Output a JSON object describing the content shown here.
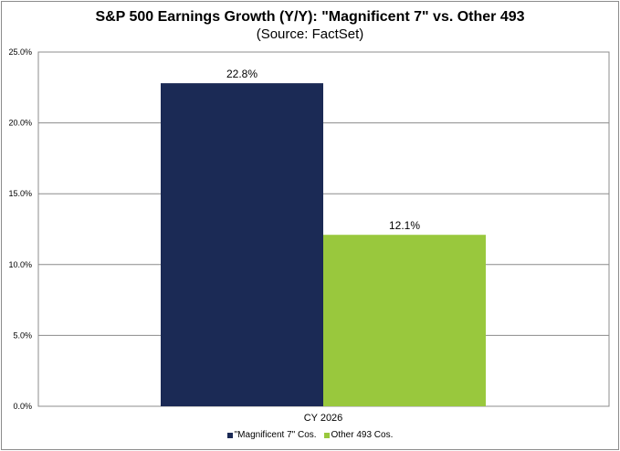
{
  "chart_data": {
    "type": "bar",
    "title": "S&P 500 Earnings Growth (Y/Y): \"Magnificent 7\" vs. Other 493",
    "subtitle": "(Source: FactSet)",
    "categories": [
      "CY 2026"
    ],
    "series": [
      {
        "name": "\"Magnificent 7\" Cos.",
        "values": [
          22.8
        ],
        "label": "22.8%",
        "color": "#1b2a55"
      },
      {
        "name": "Other 493 Cos.",
        "values": [
          12.1
        ],
        "label": "12.1%",
        "color": "#99c83d"
      }
    ],
    "ylim": [
      0,
      25
    ],
    "yticks": [
      0,
      5,
      10,
      15,
      20,
      25
    ],
    "ytick_labels": [
      "0.0%",
      "5.0%",
      "10.0%",
      "15.0%",
      "20.0%",
      "25.0%"
    ],
    "grid": true,
    "legend": "bottom"
  }
}
